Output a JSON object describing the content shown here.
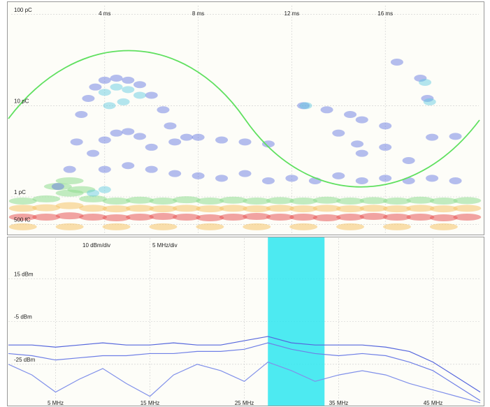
{
  "chart_data": [
    {
      "type": "scatter",
      "log_y": true,
      "grid": true,
      "xlim": [
        0,
        20
      ],
      "ylim": [
        0.4,
        125
      ],
      "xticks": [
        {
          "value": 4,
          "label": "4 ms"
        },
        {
          "value": 8,
          "label": "8 ms"
        },
        {
          "value": 12,
          "label": "12 ms"
        },
        {
          "value": 16,
          "label": "16 ms"
        }
      ],
      "yticks": [
        {
          "value": 100,
          "label": "100 pC"
        },
        {
          "value": 10,
          "label": "10 pC"
        },
        {
          "value": 1,
          "label": "1 pC"
        },
        {
          "value": 0.5,
          "label": "500 fC"
        }
      ],
      "series": [
        {
          "color": "#8fdc8f",
          "x": [
            0.5,
            1.5,
            2.5,
            3.5,
            4.5,
            5.5,
            6.5,
            7.5,
            8.5,
            9.5,
            10.5,
            11.5,
            12.5,
            13.5,
            14.5,
            15.5,
            16.5,
            17.5,
            18.5,
            19.5,
            2,
            2.5,
            3
          ],
          "y": [
            0.9,
            0.95,
            1.1,
            0.95,
            0.9,
            0.92,
            0.9,
            0.93,
            0.9,
            0.92,
            0.9,
            0.91,
            0.9,
            0.92,
            0.9,
            0.91,
            0.9,
            0.92,
            0.9,
            0.91,
            1.3,
            1.5,
            1.2
          ]
        },
        {
          "color": "#f5c46a",
          "x": [
            0.5,
            1.5,
            2.5,
            3.5,
            4.5,
            5.5,
            6.5,
            7.5,
            8.5,
            9.5,
            10.5,
            11.5,
            12.5,
            13.5,
            14.5,
            15.5,
            16.5,
            17.5,
            18.5,
            19.5,
            0.5,
            2.5,
            4.5,
            6.5,
            8.5,
            10.5,
            12.5,
            14.5,
            16.5,
            18.5
          ],
          "y": [
            0.75,
            0.76,
            0.8,
            0.75,
            0.74,
            0.75,
            0.74,
            0.75,
            0.74,
            0.75,
            0.74,
            0.75,
            0.74,
            0.75,
            0.74,
            0.75,
            0.74,
            0.75,
            0.74,
            0.75,
            0.47,
            0.47,
            0.47,
            0.47,
            0.47,
            0.47,
            0.47,
            0.47,
            0.47,
            0.47
          ]
        },
        {
          "color": "#e85a5a",
          "x": [
            0.5,
            1.5,
            2.5,
            3.5,
            4.5,
            5.5,
            6.5,
            7.5,
            8.5,
            9.5,
            10.5,
            11.5,
            12.5,
            13.5,
            14.5,
            15.5,
            16.5,
            17.5,
            18.5,
            19.5
          ],
          "y": [
            0.6,
            0.6,
            0.62,
            0.6,
            0.59,
            0.6,
            0.61,
            0.6,
            0.59,
            0.6,
            0.61,
            0.6,
            0.6,
            0.59,
            0.6,
            0.61,
            0.6,
            0.6,
            0.59,
            0.6
          ]
        },
        {
          "color": "#5c6fe0",
          "x": [
            2,
            2.5,
            2.8,
            3,
            3.3,
            3.6,
            4,
            4.5,
            5,
            5.5,
            6,
            6.5,
            6.8,
            7,
            7.5,
            8,
            9,
            10,
            11,
            3.5,
            4,
            4.5,
            5,
            5.5,
            6,
            4,
            5,
            6,
            7,
            8,
            9,
            10,
            11,
            12,
            13,
            14,
            15,
            16,
            17,
            18,
            19,
            12.5,
            13.5,
            14.5,
            15,
            16,
            14,
            15,
            16,
            17,
            18,
            19,
            17.5,
            17.8,
            16.5,
            14.8
          ],
          "y": [
            1.3,
            2,
            4,
            8,
            12,
            16,
            19,
            20,
            19,
            17,
            13,
            9,
            6,
            4,
            4.5,
            4.5,
            4.2,
            4,
            3.8,
            3,
            4.2,
            5,
            5.2,
            4.6,
            3.5,
            2,
            2.2,
            2,
            1.8,
            1.7,
            1.6,
            1.8,
            1.5,
            1.6,
            1.5,
            1.7,
            1.5,
            1.6,
            1.5,
            1.6,
            1.5,
            10,
            9,
            8,
            7,
            6,
            5,
            3,
            3.5,
            2.5,
            4.5,
            4.6,
            20,
            12,
            30,
            3.8
          ]
        },
        {
          "color": "#58c8e0",
          "x": [
            4,
            4.5,
            5,
            5.5,
            4.2,
            4.8,
            3.5,
            4,
            12.6,
            17.7,
            17.9
          ],
          "y": [
            14,
            16,
            15,
            13,
            10,
            11,
            1.1,
            1.2,
            10,
            18,
            11
          ]
        }
      ]
    },
    {
      "type": "line",
      "grid": true,
      "annotations": [
        "10 dBm/div",
        "5 MHz/div"
      ],
      "xlim": [
        0,
        50
      ],
      "ylim": [
        -44,
        34
      ],
      "xticks": [
        {
          "value": 5,
          "label": "5 MHz"
        },
        {
          "value": 15,
          "label": "15 MHz"
        },
        {
          "value": 25,
          "label": "25 MHz"
        },
        {
          "value": 35,
          "label": "35 MHz"
        },
        {
          "value": 45,
          "label": "45 MHz"
        }
      ],
      "yticks": [
        {
          "value": 15,
          "label": "15 dBm"
        },
        {
          "value": -5,
          "label": "-5 dBm"
        },
        {
          "value": -25,
          "label": "-25 dBm"
        }
      ],
      "highlight_band": [
        27.5,
        33.5
      ],
      "highlight_color": "#2ee6f0",
      "x": [
        0,
        2.5,
        5,
        7.5,
        10,
        12.5,
        15,
        17.5,
        20,
        22.5,
        25,
        27.5,
        30,
        32.5,
        35,
        37.5,
        40,
        42.5,
        45,
        47.5,
        50
      ],
      "series": [
        {
          "color": "#5566dd",
          "values": [
            -16,
            -16,
            -17,
            -16,
            -15,
            -16,
            -16,
            -15,
            -16,
            -16,
            -14,
            -12,
            -15,
            -16,
            -16,
            -16,
            -17,
            -19,
            -24,
            -31,
            -38
          ]
        },
        {
          "color": "#6f7fe6",
          "values": [
            -20,
            -21,
            -23,
            -22,
            -21,
            -21,
            -20,
            -20,
            -19,
            -19,
            -18,
            -15,
            -18,
            -20,
            -21,
            -20,
            -21,
            -24,
            -28,
            -35,
            -42
          ]
        },
        {
          "color": "#8090ea",
          "values": [
            -25,
            -30,
            -38,
            -32,
            -27,
            -34,
            -40,
            -30,
            -25,
            -28,
            -33,
            -24,
            -28,
            -33,
            -30,
            -28,
            -30,
            -34,
            -37,
            -40,
            -43
          ]
        }
      ]
    }
  ]
}
